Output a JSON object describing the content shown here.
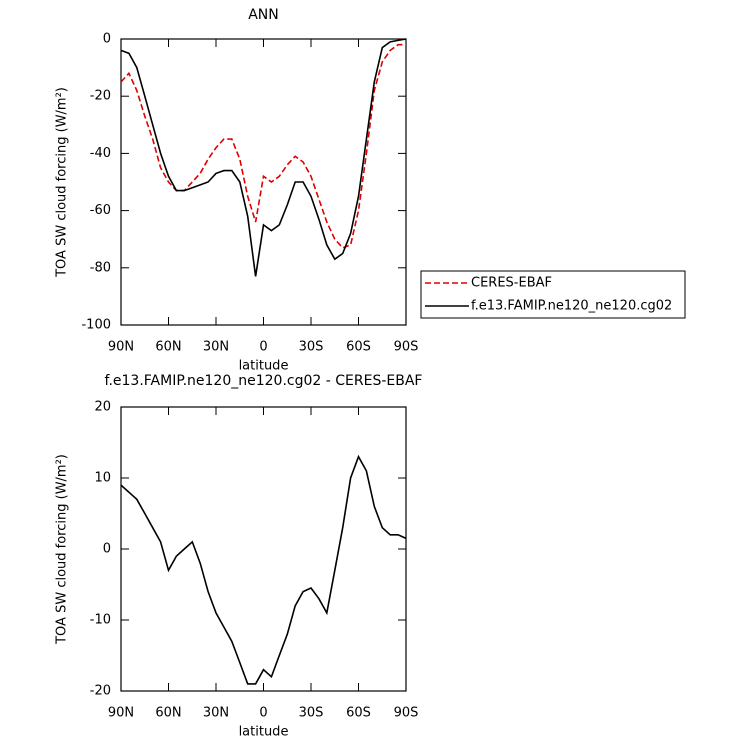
{
  "chart_data": [
    {
      "type": "line",
      "title": "ANN",
      "xlabel": "latitude",
      "ylabel": "TOA SW cloud forcing (W/m²)",
      "x": [
        90,
        85,
        80,
        75,
        70,
        65,
        60,
        55,
        50,
        45,
        40,
        35,
        30,
        25,
        20,
        15,
        10,
        5,
        0,
        -5,
        -10,
        -15,
        -20,
        -25,
        -30,
        -35,
        -40,
        -45,
        -50,
        -55,
        -60,
        -65,
        -70,
        -75,
        -80,
        -85,
        -90
      ],
      "series": [
        {
          "name": "CERES-EBAF",
          "color": "#e00000",
          "dashed": true,
          "values": [
            -15,
            -12,
            -18,
            -27,
            -35,
            -45,
            -50,
            -53,
            -53,
            -50,
            -47,
            -42,
            -38,
            -35,
            -35,
            -42,
            -55,
            -64,
            -48,
            -50,
            -48,
            -44,
            -41,
            -43,
            -48,
            -56,
            -64,
            -70,
            -73,
            -72,
            -60,
            -40,
            -18,
            -8,
            -4,
            -2,
            -2
          ]
        },
        {
          "name": "f.e13.FAMIP.ne120_ne120.cg02",
          "color": "#000000",
          "dashed": false,
          "values": [
            -4,
            -5,
            -10,
            -20,
            -30,
            -40,
            -48,
            -53,
            -53,
            -52,
            -51,
            -50,
            -47,
            -46,
            -46,
            -50,
            -62,
            -83,
            -65,
            -67,
            -65,
            -58,
            -50,
            -50,
            -55,
            -63,
            -72,
            -77,
            -75,
            -68,
            -55,
            -35,
            -15,
            -3,
            -1,
            -0.5,
            0
          ]
        }
      ],
      "xlim": [
        90,
        -90
      ],
      "xticks": [
        {
          "value": 90,
          "label": "90N"
        },
        {
          "value": 60,
          "label": "60N"
        },
        {
          "value": 30,
          "label": "30N"
        },
        0,
        {
          "value": -30,
          "label": "30S"
        },
        {
          "value": -60,
          "label": "60S"
        },
        {
          "value": -90,
          "label": "90S"
        }
      ],
      "ylim": [
        -100,
        0
      ],
      "yticks": [
        -100,
        -80,
        -60,
        -40,
        -20,
        0
      ],
      "legend": "right"
    },
    {
      "type": "line",
      "title": "f.e13.FAMIP.ne120_ne120.cg02 - CERES-EBAF",
      "xlabel": "latitude",
      "ylabel": "TOA SW cloud forcing (W/m²)",
      "x": [
        90,
        85,
        80,
        75,
        70,
        65,
        60,
        55,
        50,
        45,
        40,
        35,
        30,
        25,
        20,
        15,
        10,
        5,
        0,
        -5,
        -10,
        -15,
        -20,
        -25,
        -30,
        -35,
        -40,
        -45,
        -50,
        -55,
        -60,
        -65,
        -70,
        -75,
        -80,
        -85,
        -90
      ],
      "series": [
        {
          "color": "#000000",
          "dashed": false,
          "values": [
            9,
            8,
            7,
            5,
            3,
            1,
            -3,
            -1,
            0,
            1,
            -2,
            -6,
            -9,
            -11,
            -13,
            -16,
            -19,
            -19,
            -17,
            -18,
            -15,
            -12,
            -8,
            -6,
            -5.5,
            -7,
            -9,
            -3,
            3,
            10,
            13,
            11,
            6,
            3,
            2,
            2,
            1.5
          ]
        }
      ],
      "xlim": [
        90,
        -90
      ],
      "xticks": [
        {
          "value": 90,
          "label": "90N"
        },
        {
          "value": 60,
          "label": "60N"
        },
        {
          "value": 30,
          "label": "30N"
        },
        0,
        {
          "value": -30,
          "label": "30S"
        },
        {
          "value": -60,
          "label": "60S"
        },
        {
          "value": -90,
          "label": "90S"
        }
      ],
      "ylim": [
        -20,
        20
      ],
      "yticks": [
        -20,
        -10,
        0,
        10,
        20
      ]
    }
  ]
}
